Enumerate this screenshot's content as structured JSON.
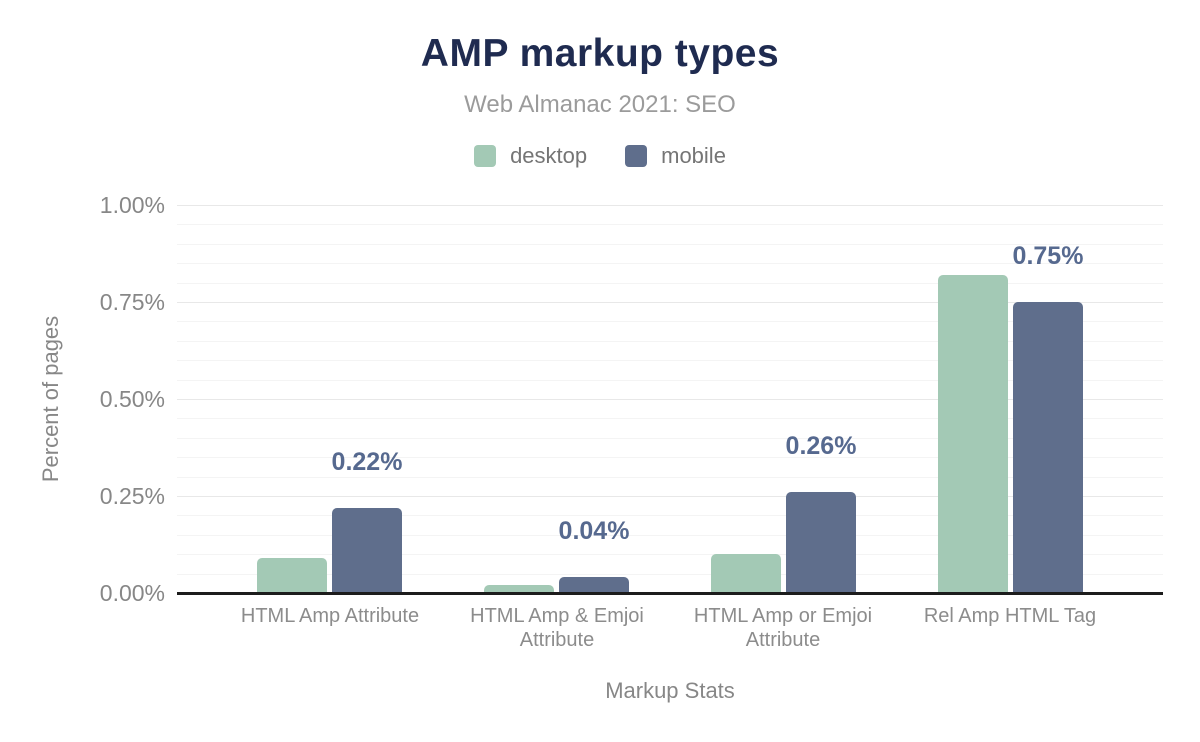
{
  "header": {
    "title": "AMP markup types",
    "subtitle": "Web Almanac 2021: SEO"
  },
  "legend": {
    "items": [
      {
        "label": "desktop",
        "color": "#a3c9b5"
      },
      {
        "label": "mobile",
        "color": "#5f6e8c"
      }
    ]
  },
  "chart_data": {
    "type": "bar",
    "title": "AMP markup types",
    "subtitle": "Web Almanac 2021: SEO",
    "categories": [
      "HTML Amp Attribute",
      "HTML Amp & Emjoi Attribute",
      "HTML Amp or Emjoi Attribute",
      "Rel Amp HTML Tag"
    ],
    "series": [
      {
        "name": "desktop",
        "color": "#a3c9b5",
        "values": [
          0.09,
          0.02,
          0.1,
          0.82
        ]
      },
      {
        "name": "mobile",
        "color": "#5f6e8c",
        "values": [
          0.22,
          0.04,
          0.26,
          0.75
        ]
      }
    ],
    "data_labels": {
      "series": "mobile",
      "labels": [
        "0.22%",
        "0.04%",
        "0.26%",
        "0.75%"
      ]
    },
    "xlabel": "Markup Stats",
    "ylabel": "Percent of pages",
    "ylim": [
      0,
      1.0
    ],
    "yticks": [
      {
        "value": 0.0,
        "label": "0.00%"
      },
      {
        "value": 0.25,
        "label": "0.25%"
      },
      {
        "value": 0.5,
        "label": "0.50%"
      },
      {
        "value": 0.75,
        "label": "0.75%"
      },
      {
        "value": 1.0,
        "label": "1.00%"
      }
    ],
    "minor_tick_step": 0.05,
    "grid": "horizontal",
    "legend_position": "top"
  },
  "colors": {
    "background": "#ffffff",
    "title": "#1f2b50",
    "subtitle": "#9b9b9b",
    "axis_text": "#878787",
    "data_label": "#56698f",
    "axis_line": "#1c1c1c",
    "grid_major": "#e8e8e8",
    "grid_minor": "#f4f4f4"
  }
}
